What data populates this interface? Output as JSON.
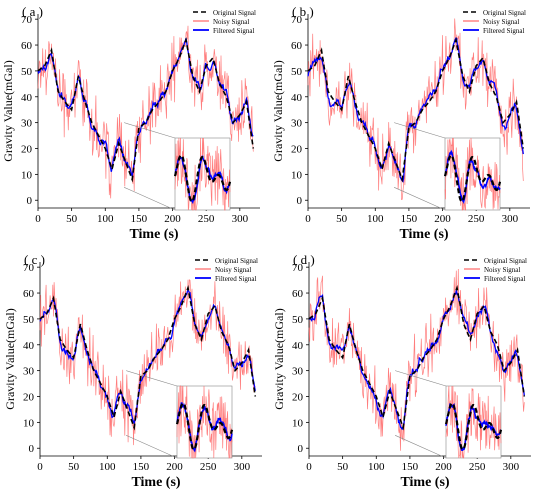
{
  "chart_data": [
    {
      "type": "line",
      "panel_label": "( a )",
      "xlabel": "Time (s)",
      "ylabel": "Gravity Value(mGal)",
      "xlim": [
        0,
        330
      ],
      "ylim": [
        -3,
        72
      ],
      "xticks": [
        0,
        50,
        100,
        150,
        200,
        250,
        300
      ],
      "yticks": [
        0,
        10,
        20,
        30,
        40,
        50,
        60,
        70
      ],
      "legend": [
        "Original Signal",
        "Noisy Signal",
        "Filtered Signal"
      ],
      "legend_position": "top-right",
      "inset": true,
      "series": [
        {
          "name": "Original Signal",
          "color": "#000000",
          "style": "dashed",
          "x": [
            0,
            10,
            20,
            30,
            40,
            50,
            60,
            70,
            80,
            90,
            100,
            110,
            120,
            130,
            140,
            150,
            160,
            170,
            180,
            190,
            200,
            210,
            220,
            230,
            240,
            250,
            260,
            270,
            280,
            290,
            300,
            310,
            320
          ],
          "values": [
            50,
            52,
            58,
            42,
            38,
            35,
            48,
            38,
            30,
            25,
            20,
            12,
            22,
            15,
            8,
            28,
            30,
            35,
            38,
            42,
            50,
            55,
            62,
            48,
            42,
            52,
            55,
            45,
            40,
            30,
            33,
            38,
            20
          ]
        },
        {
          "name": "Noisy Signal",
          "color": "#ff6666",
          "style": "solid",
          "noise_amplitude": 10
        },
        {
          "name": "Filtered Signal",
          "color": "#0000ff",
          "style": "solid"
        }
      ]
    },
    {
      "type": "line",
      "panel_label": "( b )",
      "xlabel": "Time (s)",
      "ylabel": "Gravity Value(mGal)",
      "xlim": [
        0,
        330
      ],
      "ylim": [
        -3,
        72
      ],
      "xticks": [
        0,
        50,
        100,
        150,
        200,
        250,
        300
      ],
      "yticks": [
        0,
        10,
        20,
        30,
        40,
        50,
        60,
        70
      ],
      "legend": [
        "Original Signal",
        "Noisy Signal",
        "Filtered Signal"
      ],
      "legend_position": "top-right",
      "inset": true,
      "series": [
        {
          "name": "Original Signal",
          "color": "#000000",
          "style": "dashed",
          "x": [
            0,
            10,
            20,
            30,
            40,
            50,
            60,
            70,
            80,
            90,
            100,
            110,
            120,
            130,
            140,
            150,
            160,
            170,
            180,
            190,
            200,
            210,
            220,
            230,
            240,
            250,
            260,
            270,
            280,
            290,
            300,
            310,
            320
          ],
          "values": [
            50,
            52,
            58,
            42,
            38,
            35,
            48,
            38,
            30,
            25,
            20,
            12,
            22,
            15,
            8,
            28,
            30,
            35,
            38,
            42,
            50,
            55,
            62,
            48,
            42,
            52,
            55,
            45,
            40,
            30,
            33,
            38,
            20
          ]
        },
        {
          "name": "Noisy Signal",
          "color": "#ff6666",
          "style": "solid",
          "noise_amplitude": 10
        },
        {
          "name": "Filtered Signal",
          "color": "#0000ff",
          "style": "solid"
        }
      ]
    },
    {
      "type": "line",
      "panel_label": "( c )",
      "xlabel": "Time (s)",
      "ylabel": "Gravity Value(mGal)",
      "xlim": [
        0,
        330
      ],
      "ylim": [
        -3,
        72
      ],
      "xticks": [
        0,
        50,
        100,
        150,
        200,
        250,
        300
      ],
      "yticks": [
        0,
        10,
        20,
        30,
        40,
        50,
        60,
        70
      ],
      "legend": [
        "Original Signal",
        "Noisy Signal",
        "Filtered Signal"
      ],
      "legend_position": "top-right",
      "inset": true,
      "series": [
        {
          "name": "Original Signal",
          "color": "#000000",
          "style": "dashed",
          "x": [
            0,
            10,
            20,
            30,
            40,
            50,
            60,
            70,
            80,
            90,
            100,
            110,
            120,
            130,
            140,
            150,
            160,
            170,
            180,
            190,
            200,
            210,
            220,
            230,
            240,
            250,
            260,
            270,
            280,
            290,
            300,
            310,
            320
          ],
          "values": [
            50,
            52,
            58,
            42,
            38,
            35,
            48,
            38,
            30,
            25,
            20,
            12,
            22,
            15,
            8,
            28,
            30,
            35,
            38,
            42,
            50,
            55,
            62,
            48,
            42,
            52,
            55,
            45,
            40,
            30,
            33,
            38,
            20
          ]
        },
        {
          "name": "Noisy Signal",
          "color": "#ff6666",
          "style": "solid",
          "noise_amplitude": 10
        },
        {
          "name": "Filtered Signal",
          "color": "#0000ff",
          "style": "solid"
        }
      ]
    },
    {
      "type": "line",
      "panel_label": "( d )",
      "xlabel": "Time (s)",
      "ylabel": "Gravity Value(mGal)",
      "xlim": [
        0,
        330
      ],
      "ylim": [
        -3,
        72
      ],
      "xticks": [
        0,
        50,
        100,
        150,
        200,
        250,
        300
      ],
      "yticks": [
        0,
        10,
        20,
        30,
        40,
        50,
        60,
        70
      ],
      "legend": [
        "Original Signal",
        "Noisy Signal",
        "Filtered Signal"
      ],
      "legend_position": "top-right",
      "inset": true,
      "series": [
        {
          "name": "Original Signal",
          "color": "#000000",
          "style": "dashed",
          "x": [
            0,
            10,
            20,
            30,
            40,
            50,
            60,
            70,
            80,
            90,
            100,
            110,
            120,
            130,
            140,
            150,
            160,
            170,
            180,
            190,
            200,
            210,
            220,
            230,
            240,
            250,
            260,
            270,
            280,
            290,
            300,
            310,
            320
          ],
          "values": [
            50,
            52,
            58,
            42,
            38,
            35,
            48,
            38,
            30,
            25,
            20,
            12,
            22,
            15,
            8,
            28,
            30,
            35,
            38,
            42,
            50,
            55,
            62,
            48,
            42,
            52,
            55,
            45,
            40,
            30,
            33,
            38,
            20
          ]
        },
        {
          "name": "Noisy Signal",
          "color": "#ff6666",
          "style": "solid",
          "noise_amplitude": 10
        },
        {
          "name": "Filtered Signal",
          "color": "#0000ff",
          "style": "solid"
        }
      ]
    }
  ]
}
